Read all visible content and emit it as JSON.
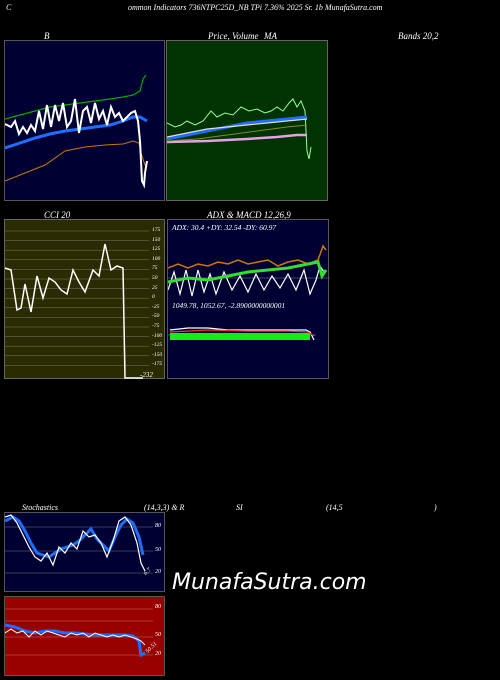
{
  "header": {
    "title": "ommon Indicators 736NTPC25D_NB TPi 7.36% 2025 Sr. 1b MunafaSutra.com",
    "left_letter": "C"
  },
  "bollinger_panel": {
    "label": "B"
  },
  "price_panel": {
    "label_price": "Price,",
    "label_volume": "Volume",
    "label_ma": "MA"
  },
  "bands_label": "Bands 20,2",
  "cci_panel": {
    "label": "CCI 20",
    "ticks": [
      "175",
      "150",
      "125",
      "100",
      "75",
      "50",
      "25",
      "0",
      "-25",
      "-50",
      "-75",
      "-100",
      "-125",
      "-150",
      "-175"
    ],
    "current": "-232"
  },
  "adx_macd_panel": {
    "label": "ADX  & MACD 12,26,9",
    "adx_text": "ADX: 30.4   +DY: 32.54  -DY: 60.97",
    "macd_text": "1049.78,   1052.67,   -2.8900000000001"
  },
  "stoch_rsi_header": {
    "stochastics": "Stochastics",
    "params": "(14,3,3) & R",
    "si": "SI",
    "rsi_params": "(14,5",
    "close": ")"
  },
  "stoch_panel": {
    "ticks": [
      "80",
      "50",
      "20"
    ],
    "current": "6.7"
  },
  "rsi_panel": {
    "ticks": [
      "80",
      "50",
      "20"
    ],
    "current": "50.51"
  },
  "watermark": "MunafaSutra.com",
  "colors": {
    "bg": "#000000",
    "navy": "#000033",
    "green": "#003300",
    "olive": "#2b2b00",
    "red": "#990000",
    "blue": "#1e6fff"
  }
}
